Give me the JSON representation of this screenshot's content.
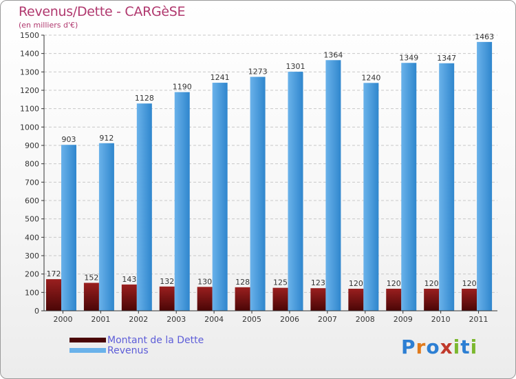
{
  "title": "Revenus/Dette - CARGèSE",
  "subtitle": "(en milliers d'€)",
  "legend": {
    "debt_label": "Montant de la Dette",
    "revenue_label": "Revenus"
  },
  "logo": {
    "text": "Proxiti",
    "letter_colors": [
      "#2d7fd3",
      "#e07a1c",
      "#2d7fd3",
      "#c0392b",
      "#7cb82f",
      "#2d7fd3",
      "#7cb82f"
    ]
  },
  "colors": {
    "debt_top": "#9a1f1f",
    "debt_bottom": "#4a0606",
    "rev_light": "#6ab2ea",
    "rev_dark": "#2f86cd",
    "axis": "#333333",
    "grid": "#c8c8c8",
    "label": "#333333"
  },
  "chart_data": {
    "type": "bar",
    "title": "Revenus/Dette - CARGèSE",
    "ylabel": "(en milliers d'€)",
    "xlabel": "",
    "ylim": [
      0,
      1500
    ],
    "ytick_step": 100,
    "yticks": [
      "0",
      "100",
      "200",
      "300",
      "400",
      "500",
      "600",
      "700",
      "800",
      "900",
      "1000",
      "1100",
      "1200",
      "1300",
      "1400",
      "1500"
    ],
    "categories": [
      "2000",
      "2001",
      "2002",
      "2003",
      "2004",
      "2005",
      "2006",
      "2007",
      "2008",
      "2009",
      "2010",
      "2011"
    ],
    "series": [
      {
        "name": "Montant de la Dette",
        "values": [
          172,
          152,
          143,
          132,
          130,
          128,
          125,
          123,
          120,
          120,
          120,
          120
        ],
        "labels": [
          "172",
          "152",
          "143",
          "132",
          "130",
          "128",
          "125",
          "123",
          "120",
          "120",
          "120",
          "120"
        ]
      },
      {
        "name": "Revenus",
        "values": [
          903,
          912,
          1128,
          1190,
          1241,
          1273,
          1301,
          1364,
          1240,
          1349,
          1347,
          1463
        ],
        "labels": [
          "903",
          "912",
          "1128",
          "1190",
          "1241",
          "1273",
          "1301",
          "1364",
          "1240",
          "1349",
          "1347",
          "1463"
        ]
      }
    ]
  }
}
